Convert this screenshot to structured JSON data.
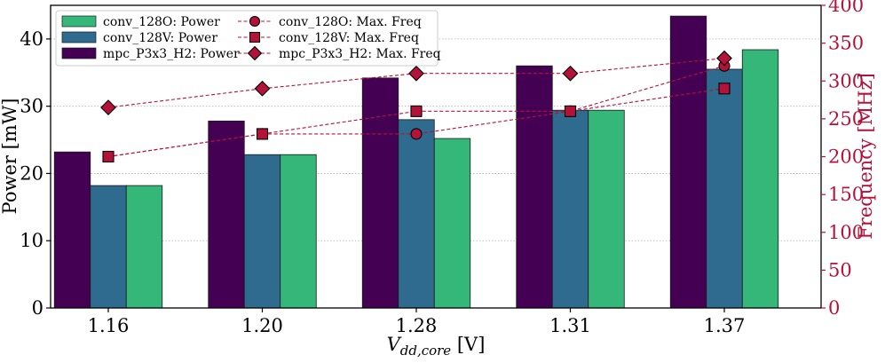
{
  "chart_data": {
    "type": "bar+line",
    "categories": [
      "1.16",
      "1.20",
      "1.28",
      "1.31",
      "1.37"
    ],
    "xlabel_main": "V",
    "xlabel_sub": "dd,core",
    "xlabel_unit": " [V]",
    "ylabel_left": "Power [mW]",
    "ylabel_right": "Frequency [MHz]",
    "ylim_left": [
      0,
      45
    ],
    "yticks_left": [
      0,
      10,
      20,
      30,
      40
    ],
    "ylim_right": [
      0,
      400
    ],
    "yticks_right": [
      0,
      50,
      100,
      150,
      200,
      250,
      300,
      350,
      400
    ],
    "right_axis_color": "#b5123a",
    "bar_series": [
      {
        "name": "mpc_P3x3_H2: Power",
        "color": "#440154",
        "values": [
          23.2,
          27.8,
          34.2,
          36.0,
          43.4
        ]
      },
      {
        "name": "conv_128V: Power",
        "color": "#2e6b8e",
        "values": [
          18.2,
          22.8,
          28.0,
          29.4,
          35.5
        ]
      },
      {
        "name": "conv_128O: Power",
        "color": "#35b779",
        "values": [
          18.2,
          22.8,
          25.2,
          29.4,
          38.4
        ]
      }
    ],
    "line_series": [
      {
        "name": "conv_128O: Max. Freq",
        "marker": "circle",
        "values": [
          200,
          230,
          230,
          260,
          320
        ]
      },
      {
        "name": "conv_128V: Max. Freq",
        "marker": "square",
        "values": [
          200,
          230,
          260,
          260,
          290
        ]
      },
      {
        "name": "mpc_P3x3_H2: Max. Freq",
        "marker": "diamond",
        "values": [
          265,
          290,
          310,
          310,
          330
        ]
      }
    ],
    "legend_placement": "top-left",
    "legend_left_column": [
      "conv_128O: Power",
      "conv_128V: Power",
      "mpc_P3x3_H2: Power"
    ],
    "legend_right_column": [
      "conv_128O: Max. Freq",
      "conv_128V: Max. Freq",
      "mpc_P3x3_H2: Max. Freq"
    ],
    "grid": "horizontal dotted"
  }
}
